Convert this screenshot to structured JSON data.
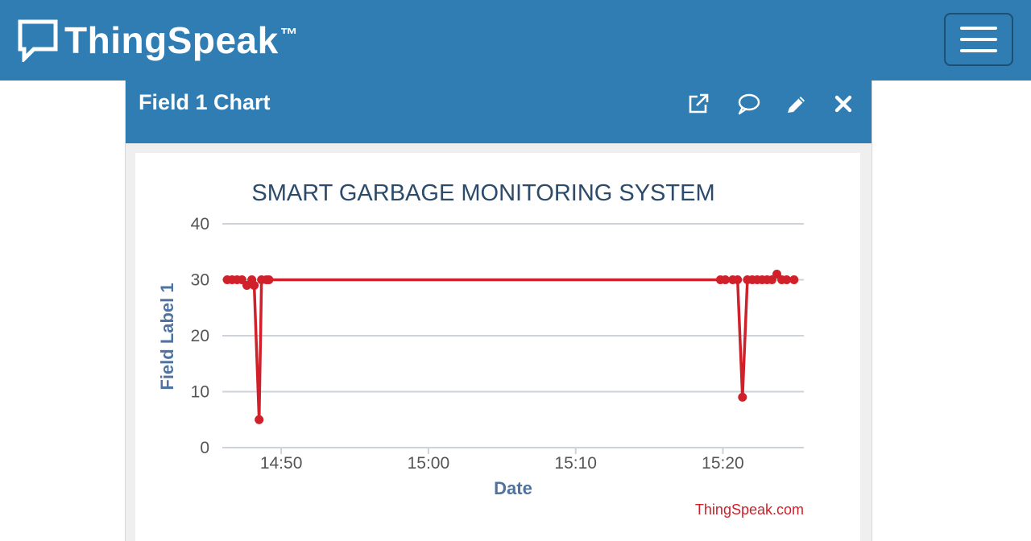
{
  "app": {
    "brand": "ThingSpeak",
    "tm": "™"
  },
  "icons": {
    "logo": "speech-bubble-icon",
    "menu": "hamburger-menu-icon",
    "external": "external-link-icon",
    "comment": "comment-icon",
    "edit": "pencil-icon",
    "close": "close-icon"
  },
  "card": {
    "title": "Field 1 Chart"
  },
  "colors": {
    "header": "#2f7db3",
    "series": "#d0202a",
    "axis_text": "#4f73a0"
  },
  "chart_data": {
    "type": "line",
    "title": "SMART GARBAGE MONITORING SYSTEM",
    "xlabel": "Date",
    "ylabel": "Field Label 1",
    "credit": "ThingSpeak.com",
    "ylim": [
      0,
      40
    ],
    "yticks": [
      0,
      10,
      20,
      30,
      40
    ],
    "xlim": [
      "14:46:00",
      "15:25:30"
    ],
    "xticks": [
      "14:50",
      "15:00",
      "15:10",
      "15:20"
    ],
    "grid": true,
    "legend": "none",
    "series": [
      {
        "x": [
          "14:46:20",
          "14:46:40",
          "14:47:00",
          "14:47:20",
          "14:47:40",
          "14:48:00",
          "14:48:10",
          "14:48:30",
          "14:48:40",
          "14:49:00",
          "14:49:10",
          "15:19:50",
          "15:20:10",
          "15:20:40",
          "15:21:00",
          "15:21:20",
          "15:21:40",
          "15:22:00",
          "15:22:20",
          "15:22:40",
          "15:23:00",
          "15:23:20",
          "15:23:40",
          "15:24:00",
          "15:24:20",
          "15:24:50"
        ],
        "y": [
          30,
          30,
          30,
          30,
          29,
          30,
          29,
          5,
          30,
          30,
          30,
          30,
          30,
          30,
          30,
          9,
          30,
          30,
          30,
          30,
          30,
          30,
          31,
          30,
          30,
          30
        ]
      }
    ]
  }
}
